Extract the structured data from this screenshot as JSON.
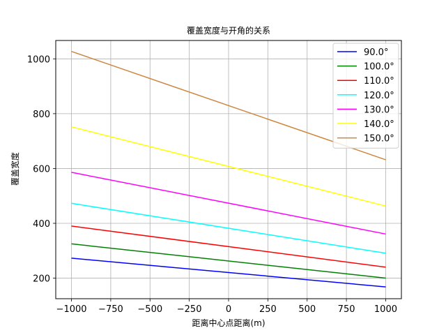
{
  "chart_data": {
    "type": "line",
    "title": "覆盖宽度与开角的关系",
    "xlabel": "距离中心点距离(m)",
    "ylabel": "覆盖宽度",
    "xlim": [
      -1100,
      1100
    ],
    "ylim": [
      125,
      1067
    ],
    "xticks": [
      -1000,
      -750,
      -500,
      -250,
      0,
      250,
      500,
      750,
      1000
    ],
    "xtick_labels": [
      "−1000",
      "−750",
      "−500",
      "−250",
      "0",
      "250",
      "500",
      "750",
      "1000"
    ],
    "yticks": [
      200,
      400,
      600,
      800,
      1000
    ],
    "ytick_labels": [
      "200",
      "400",
      "600",
      "800",
      "1000"
    ],
    "grid": true,
    "legend_position": "top-right",
    "x": [
      -1000,
      1000
    ],
    "series": [
      {
        "name": "90.0°",
        "color": "#0000ff",
        "values": [
          273,
          168
        ]
      },
      {
        "name": "100.0°",
        "color": "#008000",
        "values": [
          325,
          200
        ]
      },
      {
        "name": "110.0°",
        "color": "#ff0000",
        "values": [
          390,
          240
        ]
      },
      {
        "name": "120.0°",
        "color": "#00ffff",
        "values": [
          473,
          291
        ]
      },
      {
        "name": "130.0°",
        "color": "#ff00ff",
        "values": [
          586,
          361
        ]
      },
      {
        "name": "140.0°",
        "color": "#ffff00",
        "values": [
          752,
          463
        ]
      },
      {
        "name": "150.0°",
        "color": "#cd853f",
        "values": [
          1027,
          632
        ]
      }
    ]
  }
}
